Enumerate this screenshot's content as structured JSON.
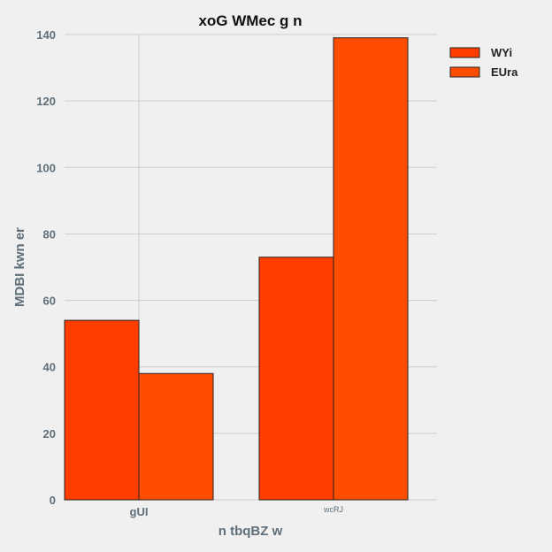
{
  "chart_data": {
    "type": "bar",
    "title": "xoG WMec g n",
    "xlabel": "n tbqBZ w",
    "ylabel": "MDBI kwn er",
    "categories": [
      "gUI",
      "wcRJ"
    ],
    "series": [
      {
        "name": "WYi",
        "values": [
          54,
          73
        ],
        "color": "#ff3d00"
      },
      {
        "name": "EUra",
        "values": [
          38,
          139
        ],
        "color": "#ff4d00"
      }
    ],
    "ylim": [
      0,
      140
    ],
    "yticks": [
      0,
      20,
      40,
      60,
      80,
      100,
      120,
      140
    ],
    "grid": true,
    "legend_position": "top-right"
  }
}
